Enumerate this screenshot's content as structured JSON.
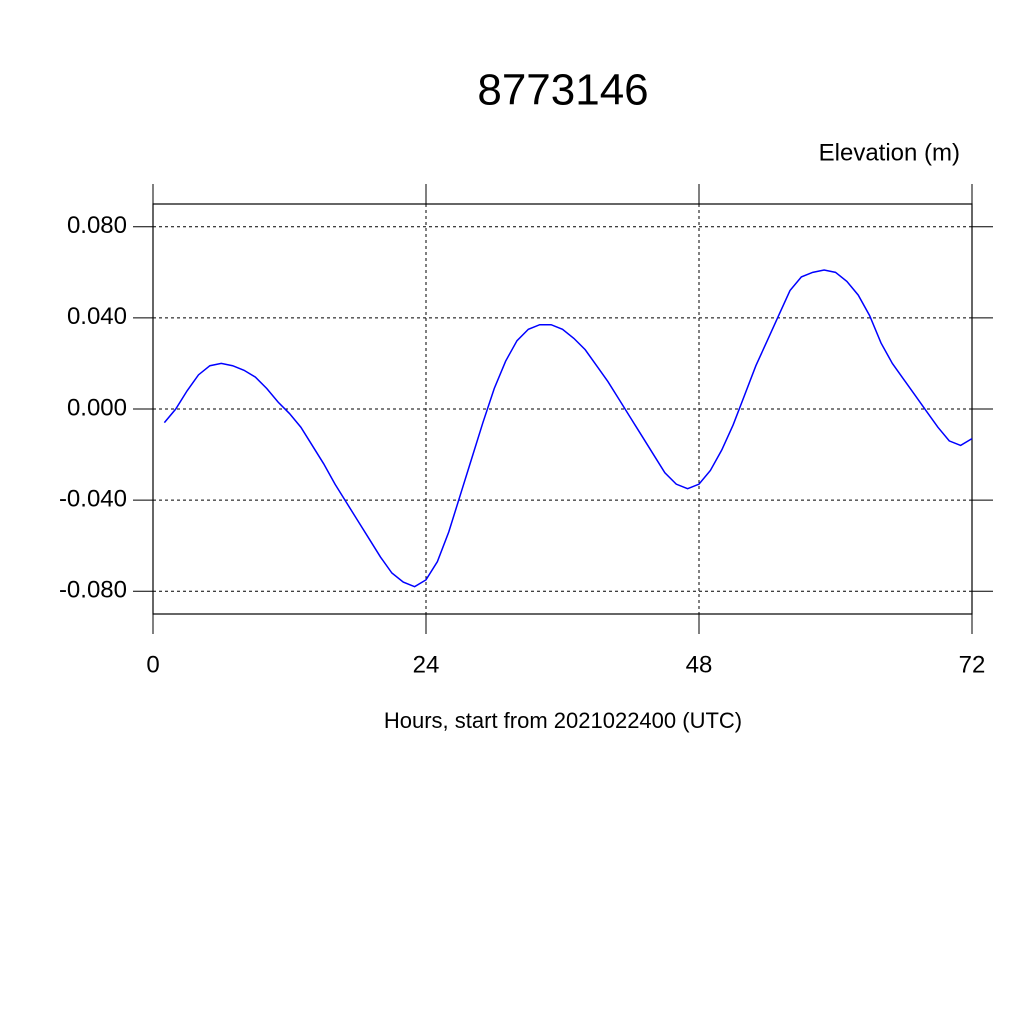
{
  "chart_data": {
    "type": "line",
    "title": "8773146",
    "subtitle": "Elevation (m)",
    "x_label": "Hours, start from 2021022400 (UTC)",
    "x": [
      1,
      2,
      3,
      4,
      5,
      6,
      7,
      8,
      9,
      10,
      11,
      12,
      13,
      14,
      15,
      16,
      17,
      18,
      19,
      20,
      21,
      22,
      23,
      24,
      25,
      26,
      27,
      28,
      29,
      30,
      31,
      32,
      33,
      34,
      35,
      36,
      37,
      38,
      39,
      40,
      41,
      42,
      43,
      44,
      45,
      46,
      47,
      48,
      49,
      50,
      51,
      52,
      53,
      54,
      55,
      56,
      57,
      58,
      59,
      60,
      61,
      62,
      63,
      64,
      65,
      66,
      67,
      68,
      69,
      70,
      71,
      72
    ],
    "series": [
      {
        "color": "#0000ff",
        "values": [
          -0.006,
          0.0,
          0.008,
          0.015,
          0.019,
          0.02,
          0.019,
          0.017,
          0.014,
          0.009,
          0.003,
          -0.002,
          -0.008,
          -0.016,
          -0.024,
          -0.033,
          -0.041,
          -0.049,
          -0.057,
          -0.065,
          -0.072,
          -0.076,
          -0.078,
          -0.075,
          -0.067,
          -0.054,
          -0.038,
          -0.022,
          -0.006,
          0.009,
          0.021,
          0.03,
          0.035,
          0.037,
          0.037,
          0.035,
          0.031,
          0.026,
          0.019,
          0.012,
          0.004,
          -0.004,
          -0.012,
          -0.02,
          -0.028,
          -0.033,
          -0.035,
          -0.033,
          -0.027,
          -0.018,
          -0.007,
          0.006,
          0.019,
          0.03,
          0.041,
          0.052,
          0.058,
          0.06,
          0.061,
          0.06,
          0.056,
          0.05,
          0.041,
          0.029,
          0.02,
          0.013,
          0.006,
          -0.001,
          -0.008,
          -0.014,
          -0.016,
          -0.013
        ]
      }
    ],
    "xlim": [
      0,
      72
    ],
    "xticks": [
      0,
      24,
      48,
      72
    ],
    "ylim": [
      -0.09,
      0.09
    ],
    "yticks": [
      {
        "value": -0.08,
        "label": "-0.080"
      },
      {
        "value": -0.04,
        "label": "-0.040"
      },
      {
        "value": 0,
        "label": "0.000"
      },
      {
        "value": 0.04,
        "label": "0.040"
      },
      {
        "value": 0.08,
        "label": "0.080"
      }
    ],
    "grid": true
  }
}
